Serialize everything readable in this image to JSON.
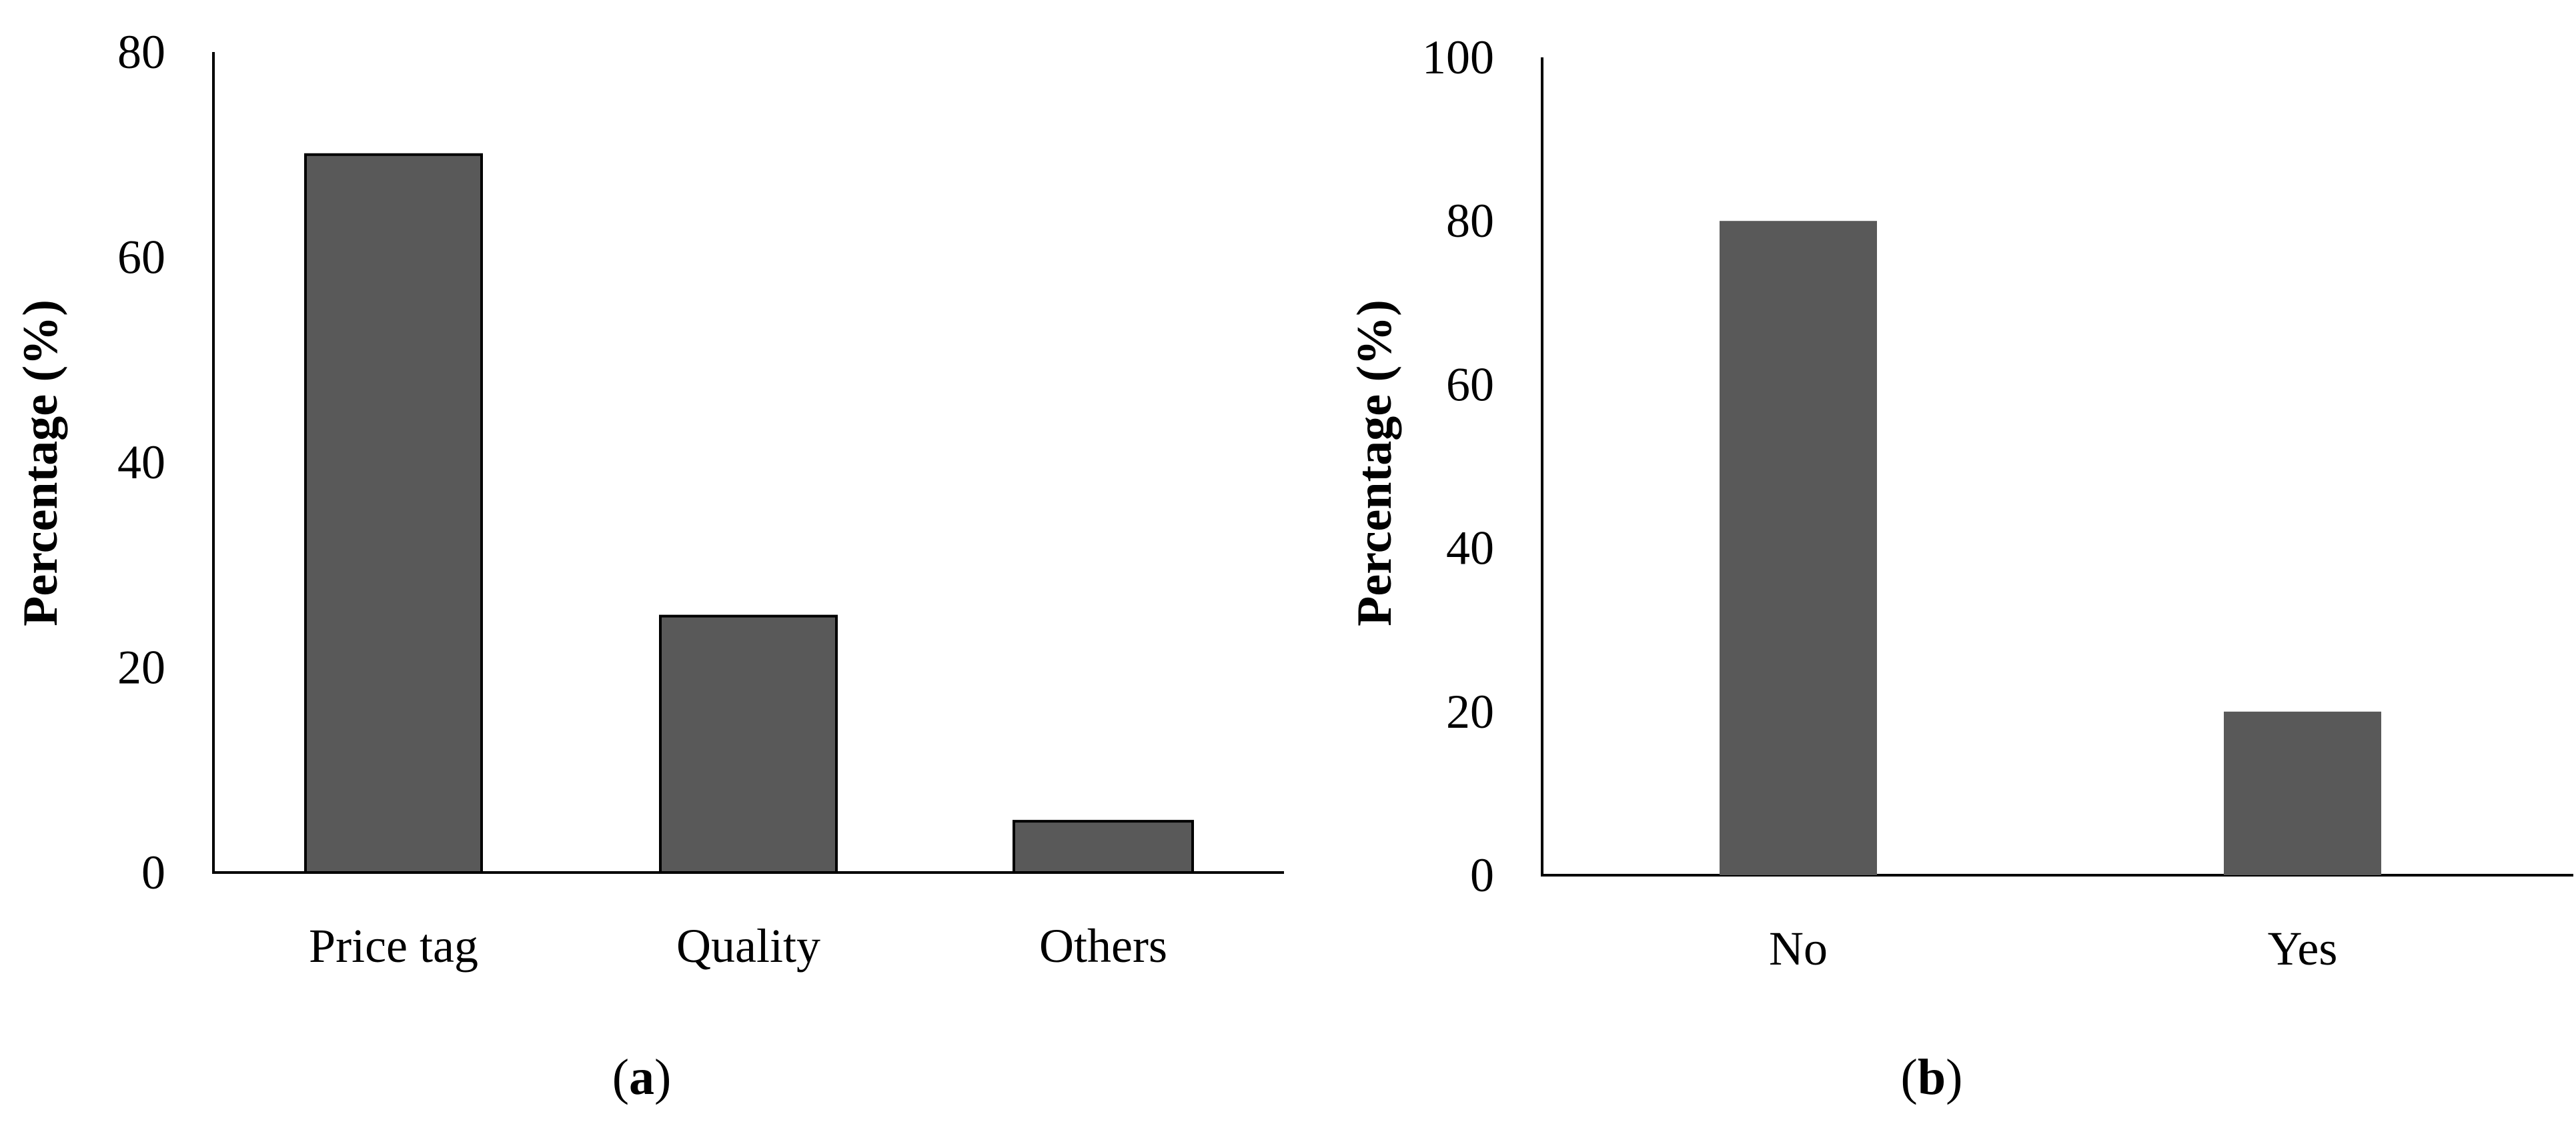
{
  "chart_data": [
    {
      "type": "bar",
      "panel_label": "a",
      "categories": [
        "Price tag",
        "Quality",
        "Others"
      ],
      "values": [
        70,
        25,
        5
      ],
      "ylabel": "Percentage (%)",
      "xlabel": "",
      "ylim": [
        0,
        80
      ],
      "yticks": [
        0,
        20,
        40,
        60,
        80
      ],
      "grid": false,
      "bar_color": "#595959",
      "bar_outline": "#000000"
    },
    {
      "type": "bar",
      "panel_label": "b",
      "categories": [
        "No",
        "Yes"
      ],
      "values": [
        80,
        20
      ],
      "ylabel": "Percentage (%)",
      "xlabel": "",
      "ylim": [
        0,
        100
      ],
      "yticks": [
        0,
        20,
        40,
        60,
        80,
        100
      ],
      "grid": false,
      "bar_color": "#595959",
      "bar_outline": "none"
    }
  ]
}
